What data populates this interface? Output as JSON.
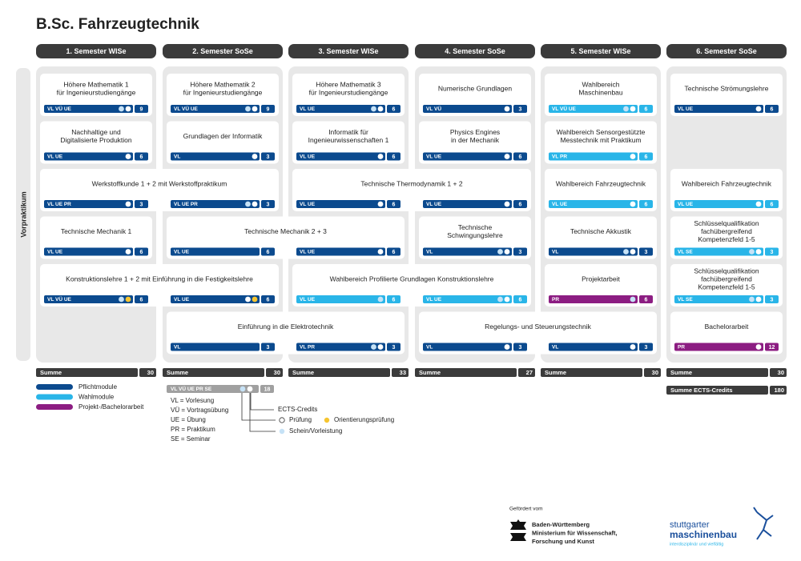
{
  "header": {
    "title": "B.Sc. Fahrzeugtechnik"
  },
  "side_label": "Vorpraktikum",
  "kind_colors": {
    "pflicht": "#0b4a8e",
    "wahl": "#29b5e8",
    "projekt": "#8c1d82"
  },
  "dot_colors": {
    "schein": "#c6e2f6",
    "pruefung": "#ffffff",
    "orientierung": "#f6c530"
  },
  "semesters": [
    {
      "label": "1. Semester  WISe",
      "sum": 30
    },
    {
      "label": "2. Semester  SoSe",
      "sum": 30
    },
    {
      "label": "3. Semester  WISe",
      "sum": 33
    },
    {
      "label": "4. Semester  SoSe",
      "sum": 27
    },
    {
      "label": "5. Semester  WISe",
      "sum": 30
    },
    {
      "label": "6. Semester  SoSe",
      "sum": 30
    }
  ],
  "sum_label": "Summe",
  "total": {
    "label": "Summe ECTS-Credits",
    "value": 180
  },
  "rows": [
    [
      {
        "kind": "pflicht",
        "title": [
          "Höhere Mathematik 1",
          "für Ingenieurstudiengänge"
        ],
        "bars": [
          {
            "tags": "VL  VÜ  UE",
            "dots": [
              "schein",
              "pruefung"
            ],
            "ects": 9
          }
        ]
      },
      {
        "kind": "pflicht",
        "title": [
          "Höhere Mathematik 2",
          "für Ingenieurstudiengänge"
        ],
        "bars": [
          {
            "tags": "VL  VÜ  UE",
            "dots": [
              "schein",
              "pruefung"
            ],
            "ects": 9
          }
        ]
      },
      {
        "kind": "pflicht",
        "title": [
          "Höhere Mathematik 3",
          "für Ingenieurstudiengänge"
        ],
        "bars": [
          {
            "tags": "VL  UE",
            "dots": [
              "schein",
              "pruefung"
            ],
            "ects": 6
          }
        ]
      },
      {
        "kind": "pflicht",
        "title": [
          "Numerische Grundlagen"
        ],
        "bars": [
          {
            "tags": "VL  VÜ",
            "dots": [
              "pruefung"
            ],
            "ects": 3
          }
        ]
      },
      {
        "kind": "wahl",
        "title": [
          "Wahlbereich",
          "Maschinenbau"
        ],
        "bars": [
          {
            "tags": "VL  VÜ  UE",
            "dots": [
              "schein",
              "pruefung"
            ],
            "ects": 6
          }
        ]
      },
      {
        "kind": "pflicht",
        "title": [
          "Technische Strömungslehre"
        ],
        "bars": [
          {
            "tags": "VL  UE",
            "dots": [
              "pruefung"
            ],
            "ects": 6
          }
        ]
      }
    ],
    [
      {
        "kind": "pflicht",
        "title": [
          "Nachhaltige und",
          "Digitalisierte Produktion"
        ],
        "bars": [
          {
            "tags": "VL  UE",
            "dots": [
              "pruefung"
            ],
            "ects": 6
          }
        ]
      },
      {
        "kind": "pflicht",
        "title": [
          "Grundlagen der Informatik"
        ],
        "bars": [
          {
            "tags": "VL",
            "dots": [
              "pruefung"
            ],
            "ects": 3
          }
        ]
      },
      {
        "kind": "pflicht",
        "title": [
          "Informatik für",
          "Ingenieurwissenschaften 1"
        ],
        "bars": [
          {
            "tags": "VL  UE",
            "dots": [
              "pruefung"
            ],
            "ects": 6
          }
        ]
      },
      {
        "kind": "pflicht",
        "title": [
          "Physics Engines",
          "in der Mechanik"
        ],
        "bars": [
          {
            "tags": "VL  UE",
            "dots": [
              "pruefung"
            ],
            "ects": 6
          }
        ]
      },
      {
        "kind": "wahl",
        "title": [
          "Wahlbereich Sensorgestützte",
          "Messtechnik mit Praktikum"
        ],
        "bars": [
          {
            "tags": "VL  PR",
            "dots": [
              "pruefung"
            ],
            "ects": 6
          }
        ]
      },
      null
    ],
    [
      {
        "kind": "pflicht",
        "title": [
          "Werkstoffkunde 1 + 2 mit Werkstoffpraktikum"
        ],
        "bars": [
          {
            "tags": "VL  UE  PR",
            "dots": [
              "pruefung"
            ],
            "ects": 3
          },
          {
            "tags": "VL  UE  PR",
            "dots": [
              "schein",
              "pruefung"
            ],
            "ects": 3
          }
        ]
      },
      {
        "kind": "pflicht",
        "title": [
          "Technische Thermodynamik 1 + 2"
        ],
        "bars": [
          {
            "tags": "VL  UE",
            "dots": [
              "pruefung"
            ],
            "ects": 6
          },
          {
            "tags": "VL  UE",
            "dots": [
              "pruefung"
            ],
            "ects": 6
          }
        ]
      },
      {
        "kind": "wahl",
        "title": [
          "Wahlbereich Fahrzeugtechnik"
        ],
        "bars": [
          {
            "tags": "VL  UE",
            "dots": [
              "pruefung"
            ],
            "ects": 6
          }
        ]
      },
      {
        "kind": "wahl",
        "title": [
          "Wahlbereich Fahrzeugtechnik"
        ],
        "bars": [
          {
            "tags": "VL  UE",
            "dots": [
              "pruefung"
            ],
            "ects": 6
          }
        ]
      }
    ],
    [
      {
        "kind": "pflicht",
        "title": [
          "Technische Mechanik 1"
        ],
        "bars": [
          {
            "tags": "VL  UE",
            "dots": [
              "pruefung"
            ],
            "ects": 6
          }
        ]
      },
      {
        "kind": "pflicht",
        "title": [
          "Technische Mechanik 2 + 3"
        ],
        "bars": [
          {
            "tags": "VL  UE",
            "dots": [],
            "ects": 6
          },
          {
            "tags": "VL  UE",
            "dots": [
              "pruefung"
            ],
            "ects": 6
          }
        ]
      },
      {
        "kind": "pflicht",
        "title": [
          "Technische",
          "Schwingungslehre"
        ],
        "bars": [
          {
            "tags": "VL",
            "dots": [
              "schein",
              "pruefung"
            ],
            "ects": 3
          }
        ]
      },
      {
        "kind": "pflicht",
        "title": [
          "Technische Akkustik"
        ],
        "bars": [
          {
            "tags": "VL",
            "dots": [
              "schein",
              "pruefung"
            ],
            "ects": 3
          }
        ]
      },
      {
        "kind": "wahl",
        "title": [
          "Schlüsselqualifikation",
          "fachübergreifend",
          "Kompetenzfeld 1-5"
        ],
        "bars": [
          {
            "tags": "VL  SE",
            "dots": [
              "schein",
              "pruefung"
            ],
            "ects": 3
          }
        ]
      }
    ],
    [
      {
        "kind": "pflicht",
        "title": [
          "Konstruktionslehre 1 + 2 mit Einführung in die Festigkeitslehre"
        ],
        "bars": [
          {
            "tags": "VL  VÜ  UE",
            "dots": [
              "schein",
              "orientierung"
            ],
            "ects": 6
          },
          {
            "tags": "VL  UE",
            "dots": [
              "pruefung",
              "orientierung"
            ],
            "ects": 6
          }
        ]
      },
      {
        "kind": "wahl",
        "title": [
          "Wahlbereich Profilierte Grundlagen Konstruktionslehre"
        ],
        "bars": [
          {
            "tags": "VL  UE",
            "dots": [
              "schein"
            ],
            "ects": 6
          },
          {
            "tags": "VL  UE",
            "dots": [
              "schein",
              "pruefung"
            ],
            "ects": 6
          }
        ]
      },
      {
        "kind": "projekt",
        "title": [
          "Projektarbeit"
        ],
        "bars": [
          {
            "tags": "PR",
            "dots": [
              "schein"
            ],
            "ects": 6
          }
        ]
      },
      {
        "kind": "wahl",
        "title": [
          "Schlüsselqualifikation",
          "fachübergreifend",
          "Kompetenzfeld 1-5"
        ],
        "bars": [
          {
            "tags": "VL  SE",
            "dots": [
              "schein",
              "pruefung"
            ],
            "ects": 3
          }
        ]
      }
    ],
    [
      null,
      {
        "kind": "pflicht",
        "title": [
          "Einführung in die Elektrotechnik"
        ],
        "bars": [
          {
            "tags": "VL",
            "dots": [],
            "ects": 3
          },
          {
            "tags": "VL  PR",
            "dots": [
              "schein",
              "pruefung"
            ],
            "ects": 3
          }
        ]
      },
      {
        "kind": "pflicht",
        "title": [
          "Regelungs-  und Steuerungstechnik"
        ],
        "bars": [
          {
            "tags": "VL",
            "dots": [
              "pruefung"
            ],
            "ects": 3
          },
          {
            "tags": "VL",
            "dots": [
              "pruefung"
            ],
            "ects": 3
          }
        ]
      },
      {
        "kind": "projekt",
        "title": [
          "Bachelorarbeit"
        ],
        "bars": [
          {
            "tags": "PR",
            "dots": [
              "pruefung"
            ],
            "ects": 12
          }
        ]
      }
    ]
  ],
  "legend": {
    "kinds": [
      {
        "kind": "pflicht",
        "label": "Pflichtmodule"
      },
      {
        "kind": "wahl",
        "label": "Wahlmodule"
      },
      {
        "kind": "projekt",
        "label": "Projekt-/Bachelorarbeit"
      }
    ],
    "example": {
      "tags": "VL  VÜ  UE  PR  SE",
      "ects": 18
    },
    "abbreviations": [
      "VL = Vorlesung",
      "VÜ = Vortragsübung",
      "UE = Übung",
      "PR = Praktikum",
      "SE = Seminar"
    ],
    "ects_label": "ECTS-Credits",
    "pruefung": "Prüfung",
    "orientierung": "Orientierungsprüfung",
    "schein": "Schein/Vorleistung"
  },
  "footer": {
    "funded": "Gefördert vom",
    "ministry": [
      "Baden-Württemberg",
      "Ministerium für Wissenschaft,",
      "Forschung und Kunst"
    ],
    "brand": [
      "stuttgarter",
      "maschinenbau"
    ],
    "slogan": "interdisziplinär und vielfältig"
  }
}
